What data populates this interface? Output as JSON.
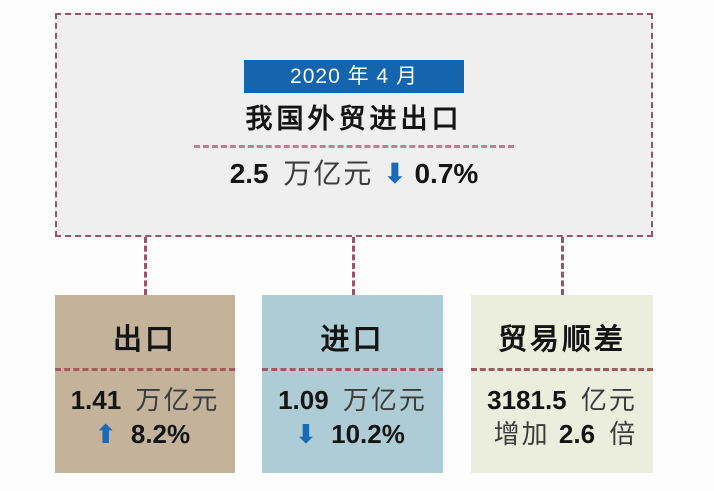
{
  "colors": {
    "accent_blue": "#1565ae",
    "arrow_blue": "#1a6ab5",
    "outer_border": "#9d5365",
    "summary_divider_pink": "#c27d92",
    "card_divider_red": "#a6585e",
    "panel_bg": "#efefef",
    "card_bg_export": "#c4b39a",
    "card_bg_import": "#aeccd5",
    "card_bg_surplus": "#ebeedd"
  },
  "summary": {
    "date": "2020 年 4 月",
    "title": "我国外贸进出口",
    "value": "2.5",
    "unit": "万亿元",
    "arrow": "⬇",
    "change": "0.7%"
  },
  "cards": [
    {
      "label": "出口",
      "value": "1.41",
      "unit": "万亿元",
      "arrow": "⬆",
      "line2_prefix": "",
      "line2_bold": "8.2%",
      "line2_suffix": ""
    },
    {
      "label": "进口",
      "value": "1.09",
      "unit": "万亿元",
      "arrow": "⬇",
      "line2_prefix": "",
      "line2_bold": "10.2%",
      "line2_suffix": ""
    },
    {
      "label": "贸易顺差",
      "value": "3181.5",
      "unit": "亿元",
      "arrow": "",
      "line2_prefix": "增加 ",
      "line2_bold": "2.6",
      "line2_suffix": " 倍"
    }
  ]
}
